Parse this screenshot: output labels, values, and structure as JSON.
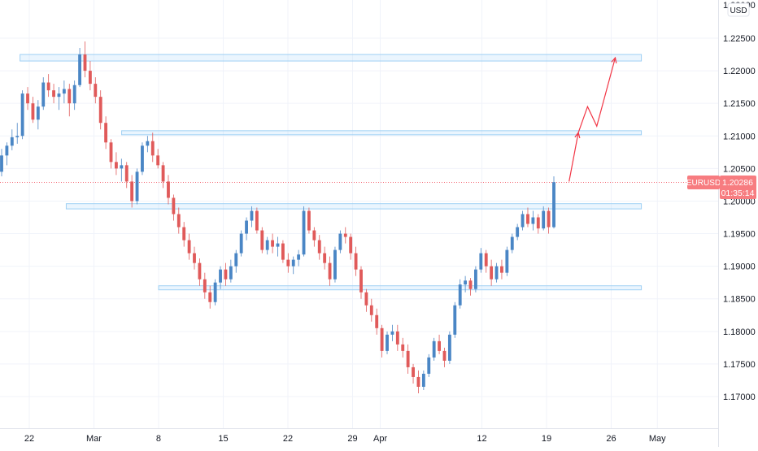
{
  "chart_data": {
    "type": "candlestick",
    "symbol": "EURUSD",
    "currency": "USD",
    "last_price": "1.20286",
    "countdown": "01:35:14",
    "y_ticks": [
      "1.22500",
      "1.22000",
      "1.21500",
      "1.21000",
      "1.20500",
      "1.20000",
      "1.19500",
      "1.19000",
      "1.18500",
      "1.18000",
      "1.17500",
      "1.17000"
    ],
    "top_tick": "1.23000",
    "x_ticks": [
      "22",
      "Mar",
      "8",
      "15",
      "22",
      "29",
      "Apr",
      "12",
      "19",
      "26",
      "May"
    ],
    "ylim": [
      1.166,
      1.23
    ],
    "colors": {
      "up": "#4a86c5",
      "down": "#e05a5a",
      "zone": "#9fd0f4",
      "projection": "#f23645",
      "label_bg": "#f77c80"
    },
    "zones": [
      {
        "from": 1.2215,
        "to": 1.2225,
        "start": "Feb 21",
        "end": "Apr 28"
      },
      {
        "from": 1.2102,
        "to": 1.2108,
        "start": "Mar 3",
        "end": "Apr 28"
      },
      {
        "from": 1.1988,
        "to": 1.1996,
        "start": "Feb 26",
        "end": "Apr 28"
      },
      {
        "from": 1.1865,
        "to": 1.187,
        "start": "Mar 7",
        "end": "Apr 28"
      }
    ],
    "projection_path": [
      {
        "time": "Apr 20",
        "price": 1.203
      },
      {
        "time": "Apr 21",
        "price": 1.2105
      },
      {
        "time": "Apr 22",
        "price": 1.2145
      },
      {
        "time": "Apr 23",
        "price": 1.2115
      },
      {
        "time": "Apr 25",
        "price": 1.222
      }
    ],
    "candles": [
      [
        1.2045,
        1.208,
        1.2038,
        1.207
      ],
      [
        1.207,
        1.209,
        1.2055,
        1.2085
      ],
      [
        1.2085,
        1.211,
        1.2078,
        1.2098
      ],
      [
        1.2098,
        1.212,
        1.2088,
        1.21
      ],
      [
        1.21,
        1.217,
        1.2095,
        1.2165
      ],
      [
        1.2165,
        1.2175,
        1.214,
        1.215
      ],
      [
        1.215,
        1.216,
        1.212,
        1.2125
      ],
      [
        1.2125,
        1.2155,
        1.211,
        1.2145
      ],
      [
        1.2145,
        1.219,
        1.214,
        1.2182
      ],
      [
        1.2182,
        1.2195,
        1.216,
        1.217
      ],
      [
        1.217,
        1.218,
        1.215,
        1.216
      ],
      [
        1.216,
        1.2175,
        1.214,
        1.2165
      ],
      [
        1.2165,
        1.2185,
        1.215,
        1.2172
      ],
      [
        1.2172,
        1.218,
        1.213,
        1.215
      ],
      [
        1.215,
        1.2185,
        1.214,
        1.2178
      ],
      [
        1.2178,
        1.2235,
        1.2175,
        1.2225
      ],
      [
        1.2225,
        1.2245,
        1.219,
        1.22
      ],
      [
        1.22,
        1.2215,
        1.217,
        1.218
      ],
      [
        1.218,
        1.219,
        1.215,
        1.216
      ],
      [
        1.216,
        1.217,
        1.211,
        1.212
      ],
      [
        1.212,
        1.213,
        1.208,
        1.209
      ],
      [
        1.209,
        1.2095,
        1.205,
        1.206
      ],
      [
        1.206,
        1.2075,
        1.204,
        1.205
      ],
      [
        1.205,
        1.2065,
        1.203,
        1.2055
      ],
      [
        1.2055,
        1.206,
        1.202,
        1.203
      ],
      [
        1.203,
        1.204,
        1.199,
        1.2
      ],
      [
        1.2,
        1.205,
        1.1995,
        1.2045
      ],
      [
        1.2045,
        1.209,
        1.204,
        1.2085
      ],
      [
        1.2085,
        1.21,
        1.2075,
        1.2092
      ],
      [
        1.2092,
        1.2105,
        1.206,
        1.207
      ],
      [
        1.207,
        1.208,
        1.205,
        1.2055
      ],
      [
        1.2055,
        1.206,
        1.202,
        1.203
      ],
      [
        1.203,
        1.204,
        1.1995,
        1.2005
      ],
      [
        1.2005,
        1.201,
        1.197,
        1.198
      ],
      [
        1.198,
        1.199,
        1.195,
        1.196
      ],
      [
        1.196,
        1.1968,
        1.193,
        1.194
      ],
      [
        1.194,
        1.195,
        1.191,
        1.192
      ],
      [
        1.192,
        1.193,
        1.1895,
        1.1905
      ],
      [
        1.1905,
        1.1912,
        1.187,
        1.188
      ],
      [
        1.188,
        1.189,
        1.185,
        1.186
      ],
      [
        1.186,
        1.187,
        1.1835,
        1.1845
      ],
      [
        1.1845,
        1.188,
        1.184,
        1.1875
      ],
      [
        1.1875,
        1.19,
        1.1865,
        1.1895
      ],
      [
        1.1895,
        1.1905,
        1.187,
        1.188
      ],
      [
        1.188,
        1.191,
        1.1875,
        1.19
      ],
      [
        1.19,
        1.1925,
        1.189,
        1.192
      ],
      [
        1.192,
        1.1955,
        1.1915,
        1.195
      ],
      [
        1.195,
        1.1975,
        1.194,
        1.197
      ],
      [
        1.197,
        1.1992,
        1.196,
        1.1985
      ],
      [
        1.1985,
        1.199,
        1.195,
        1.1955
      ],
      [
        1.1955,
        1.196,
        1.192,
        1.1925
      ],
      [
        1.1925,
        1.1945,
        1.1918,
        1.194
      ],
      [
        1.194,
        1.195,
        1.192,
        1.193
      ],
      [
        1.193,
        1.1945,
        1.1915,
        1.1935
      ],
      [
        1.1935,
        1.194,
        1.1905,
        1.191
      ],
      [
        1.191,
        1.192,
        1.189,
        1.19
      ],
      [
        1.19,
        1.1915,
        1.1888,
        1.191
      ],
      [
        1.191,
        1.1925,
        1.19,
        1.1918
      ],
      [
        1.1918,
        1.1992,
        1.1915,
        1.1985
      ],
      [
        1.1985,
        1.199,
        1.195,
        1.1955
      ],
      [
        1.1955,
        1.196,
        1.193,
        1.194
      ],
      [
        1.194,
        1.1948,
        1.191,
        1.192
      ],
      [
        1.192,
        1.193,
        1.1895,
        1.1905
      ],
      [
        1.1905,
        1.1915,
        1.187,
        1.188
      ],
      [
        1.188,
        1.193,
        1.1875,
        1.1925
      ],
      [
        1.1925,
        1.1955,
        1.192,
        1.195
      ],
      [
        1.195,
        1.196,
        1.1935,
        1.1945
      ],
      [
        1.1945,
        1.195,
        1.191,
        1.192
      ],
      [
        1.192,
        1.193,
        1.1885,
        1.1895
      ],
      [
        1.1895,
        1.19,
        1.185,
        1.186
      ],
      [
        1.186,
        1.1865,
        1.183,
        1.184
      ],
      [
        1.184,
        1.185,
        1.1815,
        1.1825
      ],
      [
        1.1825,
        1.1835,
        1.1795,
        1.1805
      ],
      [
        1.1805,
        1.181,
        1.176,
        1.177
      ],
      [
        1.177,
        1.18,
        1.1765,
        1.1795
      ],
      [
        1.1795,
        1.181,
        1.1785,
        1.18
      ],
      [
        1.18,
        1.181,
        1.177,
        1.178
      ],
      [
        1.178,
        1.179,
        1.176,
        1.177
      ],
      [
        1.177,
        1.178,
        1.1735,
        1.1745
      ],
      [
        1.1745,
        1.175,
        1.172,
        1.173
      ],
      [
        1.173,
        1.174,
        1.1705,
        1.1715
      ],
      [
        1.1715,
        1.174,
        1.171,
        1.1735
      ],
      [
        1.1735,
        1.1765,
        1.173,
        1.176
      ],
      [
        1.176,
        1.179,
        1.1755,
        1.1785
      ],
      [
        1.1785,
        1.1795,
        1.1765,
        1.177
      ],
      [
        1.177,
        1.1775,
        1.1745,
        1.1755
      ],
      [
        1.1755,
        1.18,
        1.175,
        1.1795
      ],
      [
        1.1795,
        1.1845,
        1.179,
        1.184
      ],
      [
        1.184,
        1.188,
        1.1835,
        1.1872
      ],
      [
        1.1872,
        1.1885,
        1.186,
        1.1878
      ],
      [
        1.1878,
        1.1882,
        1.1855,
        1.1865
      ],
      [
        1.1865,
        1.19,
        1.186,
        1.1895
      ],
      [
        1.1895,
        1.1928,
        1.189,
        1.192
      ],
      [
        1.192,
        1.1925,
        1.189,
        1.19
      ],
      [
        1.19,
        1.191,
        1.187,
        1.188
      ],
      [
        1.188,
        1.1905,
        1.1875,
        1.19
      ],
      [
        1.19,
        1.191,
        1.188,
        1.189
      ],
      [
        1.189,
        1.193,
        1.1885,
        1.1925
      ],
      [
        1.1925,
        1.195,
        1.192,
        1.1945
      ],
      [
        1.1945,
        1.1965,
        1.194,
        1.196
      ],
      [
        1.196,
        1.1985,
        1.1955,
        1.198
      ],
      [
        1.198,
        1.199,
        1.196,
        1.1965
      ],
      [
        1.1965,
        1.1985,
        1.1955,
        1.1975
      ],
      [
        1.1975,
        1.198,
        1.195,
        1.1958
      ],
      [
        1.1958,
        1.1992,
        1.1955,
        1.1985
      ],
      [
        1.1985,
        1.199,
        1.195,
        1.196
      ],
      [
        1.196,
        1.2038,
        1.1958,
        1.2029
      ]
    ]
  }
}
